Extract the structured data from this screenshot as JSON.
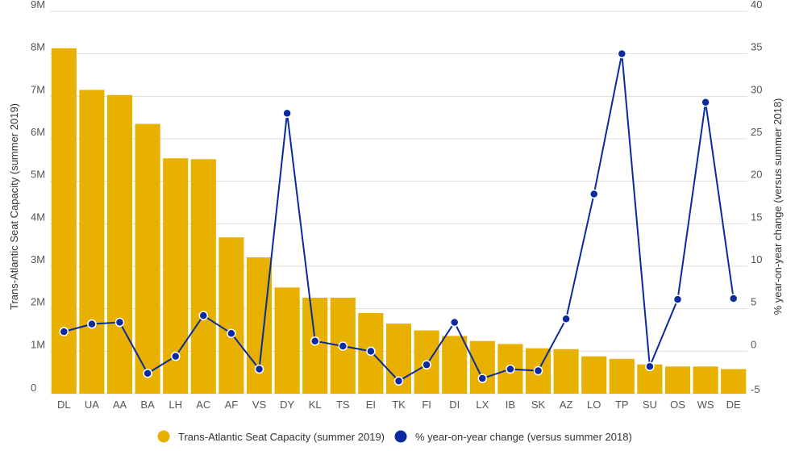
{
  "chart_data": {
    "type": "bar",
    "title": "",
    "categories": [
      "DL",
      "UA",
      "AA",
      "BA",
      "LH",
      "AC",
      "AF",
      "VS",
      "DY",
      "KL",
      "TS",
      "EI",
      "TK",
      "FI",
      "DI",
      "LX",
      "IB",
      "SK",
      "AZ",
      "LO",
      "TP",
      "SU",
      "OS",
      "WS",
      "DE"
    ],
    "series": [
      {
        "name": "Trans-Atlantic Seat Capacity (summer 2019)",
        "type": "bar",
        "axis": "left",
        "values": [
          8130000,
          7150000,
          7030000,
          6350000,
          5540000,
          5520000,
          3680000,
          3210000,
          2500000,
          2260000,
          2260000,
          1900000,
          1650000,
          1490000,
          1360000,
          1240000,
          1170000,
          1070000,
          1050000,
          880000,
          820000,
          690000,
          640000,
          640000,
          580000
        ]
      },
      {
        "name": "% year-on-year change (versus summer 2018)",
        "type": "line",
        "axis": "right",
        "values": [
          2.3,
          3.2,
          3.4,
          -2.6,
          -0.6,
          4.2,
          2.1,
          -2.1,
          28.0,
          1.2,
          0.6,
          0.0,
          -3.5,
          -1.6,
          3.4,
          -3.2,
          -2.1,
          -2.3,
          3.8,
          18.5,
          35.0,
          -1.8,
          6.1,
          29.3,
          6.2
        ]
      }
    ],
    "ylabel": "Trans-Atlantic Seat Capacity (summer 2019)",
    "y2label": "% year-on-year change (versus summer 2018)",
    "ylim": [
      0,
      9000000
    ],
    "y2lim": [
      -5,
      40
    ],
    "yticks": [
      {
        "value": 0,
        "label": "0"
      },
      {
        "value": 1000000,
        "label": "1M"
      },
      {
        "value": 2000000,
        "label": "2M"
      },
      {
        "value": 3000000,
        "label": "3M"
      },
      {
        "value": 4000000,
        "label": "4M"
      },
      {
        "value": 5000000,
        "label": "5M"
      },
      {
        "value": 6000000,
        "label": "6M"
      },
      {
        "value": 7000000,
        "label": "7M"
      },
      {
        "value": 8000000,
        "label": "8M"
      },
      {
        "value": 9000000,
        "label": "9M"
      }
    ],
    "y2ticks": [
      {
        "value": -5,
        "label": "-5"
      },
      {
        "value": 0,
        "label": "0"
      },
      {
        "value": 5,
        "label": "5"
      },
      {
        "value": 10,
        "label": "10"
      },
      {
        "value": 15,
        "label": "15"
      },
      {
        "value": 20,
        "label": "20"
      },
      {
        "value": 25,
        "label": "25"
      },
      {
        "value": 30,
        "label": "30"
      },
      {
        "value": 35,
        "label": "35"
      },
      {
        "value": 40,
        "label": "40"
      }
    ],
    "grid": true,
    "legend_position": "bottom-center",
    "colors": {
      "bar": "#e8b100",
      "line": "#0a2a9e",
      "marker_fill": "#0a2a9e",
      "marker_stroke": "#ffffff"
    }
  }
}
